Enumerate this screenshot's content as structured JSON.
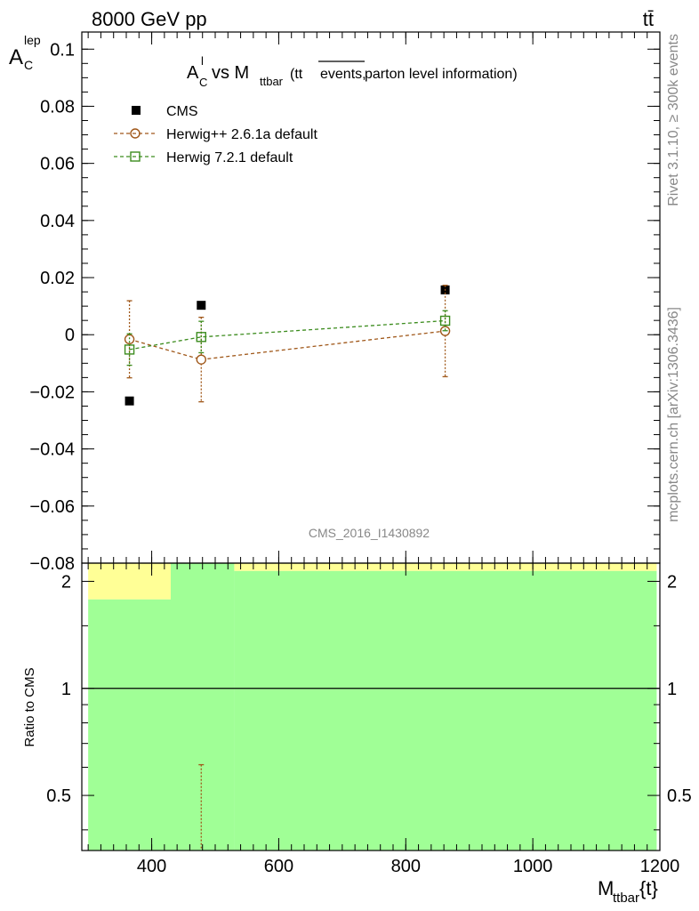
{
  "header": {
    "energy_label": "8000 GeV pp",
    "process_label": "tt̄"
  },
  "side_labels": {
    "rivet": "Rivet 3.1.10, ≥ 300k events",
    "source": "mcplots.cern.ch [arXiv:1306.3436]"
  },
  "chart_data": [
    {
      "type": "scatter",
      "title": {
        "prefix": "A",
        "sup": "l",
        "sub": "C",
        "vs": " vs M",
        "vs_sub": "ttbar",
        "paren_open": " (tt",
        "overline": "events,",
        "paren_rest": " parton level information)"
      },
      "ylabel": {
        "main": "A",
        "sup": "lep",
        "sub": "C"
      },
      "xlim": [
        290,
        1200
      ],
      "ylim": [
        -0.08,
        0.106
      ],
      "yticks": [
        {
          "v": 0.1,
          "label": "0.1"
        },
        {
          "v": 0.08,
          "label": "0.08"
        },
        {
          "v": 0.06,
          "label": "0.06"
        },
        {
          "v": 0.04,
          "label": "0.04"
        },
        {
          "v": 0.02,
          "label": "0.02"
        },
        {
          "v": 0,
          "label": "0"
        },
        {
          "v": -0.02,
          "label": "−0.02"
        },
        {
          "v": -0.04,
          "label": "−0.04"
        },
        {
          "v": -0.06,
          "label": "−0.06"
        },
        {
          "v": -0.08,
          "label": "−0.08"
        }
      ],
      "watermark": "CMS_2016_I1430892",
      "legend_position": "top-left",
      "series": [
        {
          "name": "CMS",
          "color": "#000000",
          "marker": "square-filled",
          "points": [
            {
              "x": 365,
              "y": -0.0232
            },
            {
              "x": 478,
              "y": 0.0103
            },
            {
              "x": 862,
              "y": 0.0157
            }
          ]
        },
        {
          "name": "Herwig++ 2.6.1a default",
          "color": "#a0581a",
          "marker": "circle-open",
          "points": [
            {
              "x": 365,
              "y": -0.0016,
              "yerr": 0.0135
            },
            {
              "x": 478,
              "y": -0.0087,
              "yerr": 0.0148
            },
            {
              "x": 862,
              "y": 0.0013,
              "yerr": 0.016
            }
          ]
        },
        {
          "name": "Herwig 7.2.1 default",
          "color": "#3c8c1e",
          "marker": "square-open",
          "points": [
            {
              "x": 365,
              "y": -0.0052,
              "yerr": 0.0055
            },
            {
              "x": 478,
              "y": -0.0008,
              "yerr": 0.0055
            },
            {
              "x": 862,
              "y": 0.0049,
              "yerr": 0.0035
            }
          ]
        }
      ]
    },
    {
      "type": "bar",
      "ylabel": "Ratio to CMS",
      "xlabel": {
        "main": "M",
        "sub": "ttbar",
        "rest": "{t}"
      },
      "xlim": [
        290,
        1200
      ],
      "ylim": [
        0.35,
        2.25
      ],
      "yticks": [
        {
          "v": 2,
          "label": "2"
        },
        {
          "v": 1,
          "label": "1"
        },
        {
          "v": 0.5,
          "label": "0.5"
        }
      ],
      "xticks": [
        {
          "v": 400,
          "label": "400"
        },
        {
          "v": 600,
          "label": "600"
        },
        {
          "v": 800,
          "label": "800"
        },
        {
          "v": 1000,
          "label": "1000"
        },
        {
          "v": 1200,
          "label": "1200"
        }
      ],
      "reference_line": 1,
      "bands": [
        {
          "x0": 300,
          "x1": 430,
          "green": [
            0.35,
            1.78
          ],
          "yellow": [
            1.78,
            2.25
          ]
        },
        {
          "x0": 430,
          "x1": 530,
          "green": [
            0.35,
            2.25
          ],
          "yellow": null
        },
        {
          "x0": 530,
          "x1": 1195,
          "green": [
            0.35,
            2.14
          ],
          "yellow": [
            2.14,
            2.25
          ]
        }
      ],
      "band_colors": {
        "green": "#a0ff96",
        "yellow": "#ffff96"
      },
      "ratio_errorbars": [
        {
          "x": 478,
          "y_low": 0.35,
          "y_high": 0.61,
          "color": "#a0581a"
        }
      ]
    }
  ]
}
